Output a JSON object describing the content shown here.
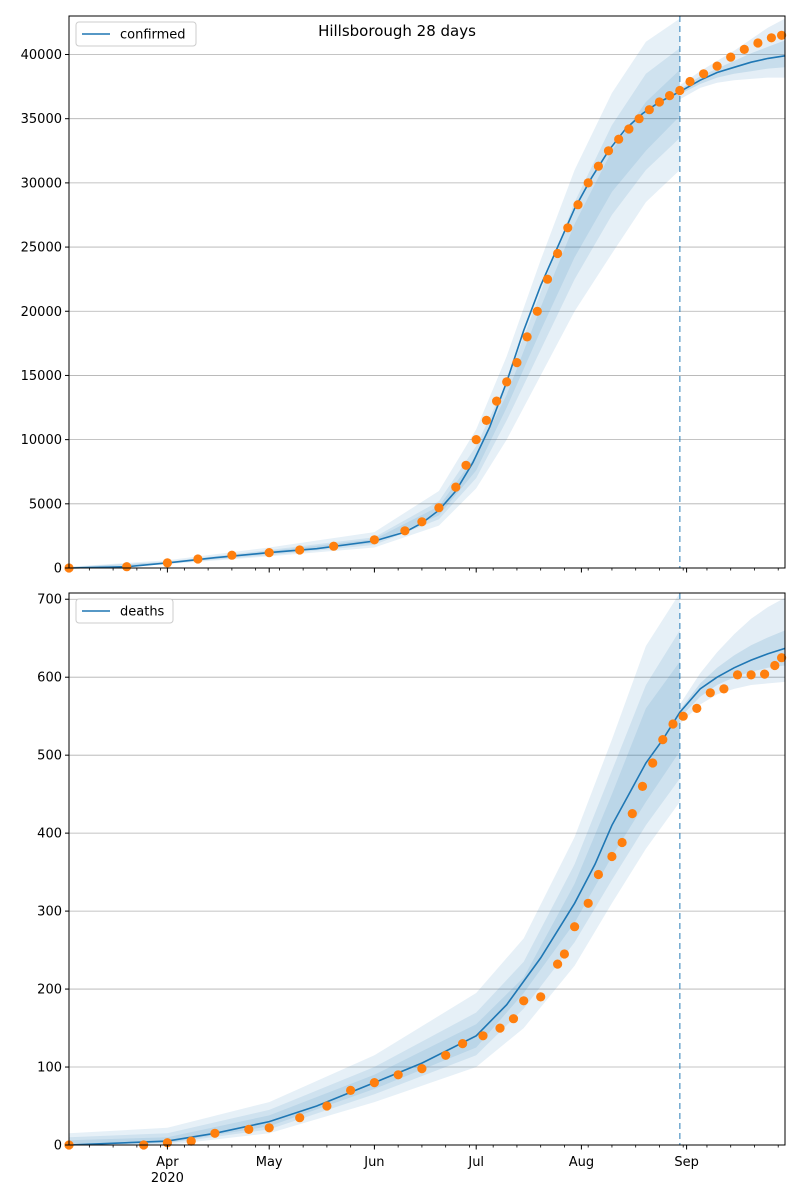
{
  "chart_data": [
    {
      "type": "line",
      "title": "Hillsborough 28 days",
      "legend": {
        "label": "confirmed",
        "placement": "top-left"
      },
      "x_tick_labels": [
        "Apr",
        "May",
        "Jun",
        "Jul",
        "Aug",
        "Sep"
      ],
      "year_label": "2020",
      "x_range": [
        "2020-03-03",
        "2020-09-30"
      ],
      "forecast_start": "2020-08-30",
      "ylim": [
        0,
        43000
      ],
      "yticks": [
        0,
        5000,
        10000,
        15000,
        20000,
        25000,
        30000,
        35000,
        40000
      ],
      "grid": "horizontal",
      "colors": {
        "model": "#1f77b4",
        "observed": "#ff7f0e",
        "band": "#1f77b4"
      },
      "series": [
        {
          "name": "confirmed",
          "kind": "model line",
          "x": [
            "2020-03-03",
            "2020-03-20",
            "2020-04-01",
            "2020-04-15",
            "2020-05-01",
            "2020-05-15",
            "2020-06-01",
            "2020-06-10",
            "2020-06-15",
            "2020-06-20",
            "2020-06-25",
            "2020-06-30",
            "2020-07-05",
            "2020-07-10",
            "2020-07-15",
            "2020-07-20",
            "2020-07-25",
            "2020-07-30",
            "2020-08-04",
            "2020-08-09",
            "2020-08-14",
            "2020-08-19",
            "2020-08-24",
            "2020-08-30",
            "2020-09-05",
            "2020-09-10",
            "2020-09-15",
            "2020-09-20",
            "2020-09-25",
            "2020-09-30"
          ],
          "y": [
            0,
            100,
            400,
            800,
            1200,
            1500,
            2100,
            2800,
            3500,
            4500,
            6000,
            8200,
            11000,
            14500,
            18500,
            22000,
            25000,
            28000,
            30400,
            32500,
            34200,
            35400,
            36300,
            37100,
            38000,
            38600,
            39000,
            39400,
            39700,
            39900
          ]
        },
        {
          "name": "observed",
          "kind": "points",
          "x": [
            "2020-03-03",
            "2020-03-20",
            "2020-04-01",
            "2020-04-10",
            "2020-04-20",
            "2020-05-01",
            "2020-05-10",
            "2020-05-20",
            "2020-06-01",
            "2020-06-10",
            "2020-06-15",
            "2020-06-20",
            "2020-06-25",
            "2020-06-28",
            "2020-07-01",
            "2020-07-04",
            "2020-07-07",
            "2020-07-10",
            "2020-07-13",
            "2020-07-16",
            "2020-07-19",
            "2020-07-22",
            "2020-07-25",
            "2020-07-28",
            "2020-07-31",
            "2020-08-03",
            "2020-08-06",
            "2020-08-09",
            "2020-08-12",
            "2020-08-15",
            "2020-08-18",
            "2020-08-21",
            "2020-08-24",
            "2020-08-27",
            "2020-08-30",
            "2020-09-02",
            "2020-09-06",
            "2020-09-10",
            "2020-09-14",
            "2020-09-18",
            "2020-09-22",
            "2020-09-26",
            "2020-09-29"
          ],
          "y": [
            0,
            100,
            400,
            700,
            1000,
            1200,
            1400,
            1700,
            2200,
            2900,
            3600,
            4700,
            6300,
            8000,
            10000,
            11500,
            13000,
            14500,
            16000,
            18000,
            20000,
            22500,
            24500,
            26500,
            28300,
            30000,
            31300,
            32500,
            33400,
            34200,
            35000,
            35700,
            36300,
            36800,
            37200,
            37900,
            38500,
            39100,
            39800,
            40400,
            40900,
            41300,
            41500
          ]
        }
      ],
      "bands": {
        "x": [
          "2020-03-03",
          "2020-04-01",
          "2020-05-01",
          "2020-06-01",
          "2020-06-20",
          "2020-07-01",
          "2020-07-10",
          "2020-07-20",
          "2020-07-30",
          "2020-08-10",
          "2020-08-20",
          "2020-08-30"
        ],
        "outer_low": [
          0,
          300,
          900,
          1600,
          3300,
          6200,
          10000,
          15000,
          20000,
          24500,
          28500,
          31000
        ],
        "outer_high": [
          100,
          600,
          1600,
          2800,
          6000,
          10800,
          16500,
          24000,
          31000,
          37000,
          41000,
          42800
        ],
        "mid_low": [
          0,
          350,
          1000,
          1800,
          3800,
          7000,
          11500,
          17000,
          22500,
          27500,
          31000,
          33500
        ],
        "mid_high": [
          80,
          500,
          1400,
          2400,
          5200,
          9500,
          14500,
          21500,
          28500,
          34500,
          38500,
          40500
        ],
        "inner_low": [
          0,
          380,
          1100,
          1950,
          4100,
          7600,
          12500,
          18500,
          24200,
          29300,
          32500,
          35200
        ],
        "inner_high": [
          60,
          450,
          1300,
          2250,
          4800,
          8800,
          13500,
          20300,
          26800,
          32500,
          36300,
          38800
        ],
        "fc_x": [
          "2020-08-30",
          "2020-09-05",
          "2020-09-10",
          "2020-09-15",
          "2020-09-20",
          "2020-09-25",
          "2020-09-30"
        ],
        "fc_outer_low": [
          36500,
          37400,
          37800,
          38000,
          38100,
          38200,
          38200
        ],
        "fc_outer_high": [
          37600,
          38700,
          39500,
          40300,
          41200,
          42100,
          42800
        ],
        "fc_inner_low": [
          36900,
          37700,
          38200,
          38500,
          38700,
          38900,
          39000
        ],
        "fc_inner_high": [
          37300,
          38300,
          38900,
          39500,
          40100,
          40600,
          41100
        ]
      }
    },
    {
      "type": "line",
      "legend": {
        "label": "deaths",
        "placement": "top-left"
      },
      "x_tick_labels": [
        "Apr",
        "May",
        "Jun",
        "Jul",
        "Aug",
        "Sep"
      ],
      "year_label": "2020",
      "x_range": [
        "2020-03-03",
        "2020-09-30"
      ],
      "forecast_start": "2020-08-30",
      "ylim": [
        0,
        708
      ],
      "yticks": [
        0,
        100,
        200,
        300,
        400,
        500,
        600,
        700
      ],
      "grid": "horizontal",
      "colors": {
        "model": "#1f77b4",
        "observed": "#ff7f0e",
        "band": "#1f77b4"
      },
      "series": [
        {
          "name": "deaths",
          "kind": "model line",
          "x": [
            "2020-03-03",
            "2020-04-01",
            "2020-04-15",
            "2020-05-01",
            "2020-05-15",
            "2020-06-01",
            "2020-06-15",
            "2020-07-01",
            "2020-07-10",
            "2020-07-20",
            "2020-07-30",
            "2020-08-05",
            "2020-08-10",
            "2020-08-15",
            "2020-08-20",
            "2020-08-25",
            "2020-08-30",
            "2020-09-05",
            "2020-09-10",
            "2020-09-15",
            "2020-09-20",
            "2020-09-25",
            "2020-09-30"
          ],
          "y": [
            0,
            5,
            15,
            30,
            50,
            80,
            105,
            140,
            180,
            240,
            310,
            360,
            410,
            450,
            490,
            520,
            555,
            585,
            600,
            612,
            622,
            630,
            637
          ]
        },
        {
          "name": "observed",
          "kind": "points",
          "x": [
            "2020-03-03",
            "2020-03-25",
            "2020-04-01",
            "2020-04-08",
            "2020-04-15",
            "2020-04-25",
            "2020-05-01",
            "2020-05-10",
            "2020-05-18",
            "2020-05-25",
            "2020-06-01",
            "2020-06-08",
            "2020-06-15",
            "2020-06-22",
            "2020-06-27",
            "2020-07-03",
            "2020-07-08",
            "2020-07-12",
            "2020-07-15",
            "2020-07-20",
            "2020-07-25",
            "2020-07-27",
            "2020-07-30",
            "2020-08-03",
            "2020-08-06",
            "2020-08-10",
            "2020-08-13",
            "2020-08-16",
            "2020-08-19",
            "2020-08-22",
            "2020-08-25",
            "2020-08-28",
            "2020-08-31",
            "2020-09-04",
            "2020-09-08",
            "2020-09-12",
            "2020-09-16",
            "2020-09-20",
            "2020-09-24",
            "2020-09-27",
            "2020-09-29"
          ],
          "y": [
            0,
            0,
            3,
            5,
            15,
            20,
            22,
            35,
            50,
            70,
            80,
            90,
            98,
            115,
            130,
            140,
            150,
            162,
            185,
            190,
            232,
            245,
            280,
            310,
            347,
            370,
            388,
            425,
            460,
            490,
            520,
            540,
            550,
            560,
            580,
            585,
            603,
            603,
            604,
            615,
            625
          ]
        }
      ],
      "bands": {
        "x": [
          "2020-03-03",
          "2020-04-01",
          "2020-05-01",
          "2020-06-01",
          "2020-07-01",
          "2020-07-15",
          "2020-07-30",
          "2020-08-10",
          "2020-08-20",
          "2020-08-30"
        ],
        "outer_low": [
          0,
          0,
          15,
          55,
          100,
          150,
          230,
          310,
          380,
          440
        ],
        "outer_high": [
          15,
          22,
          55,
          115,
          195,
          265,
          395,
          520,
          640,
          708
        ],
        "mid_low": [
          0,
          2,
          20,
          65,
          115,
          175,
          260,
          340,
          410,
          470
        ],
        "mid_high": [
          10,
          15,
          45,
          100,
          170,
          235,
          360,
          480,
          590,
          660
        ],
        "inner_low": [
          0,
          3,
          24,
          72,
          125,
          195,
          285,
          370,
          440,
          505
        ],
        "inner_high": [
          6,
          10,
          38,
          90,
          155,
          215,
          335,
          450,
          560,
          620
        ],
        "fc_x": [
          "2020-08-30",
          "2020-09-05",
          "2020-09-10",
          "2020-09-15",
          "2020-09-20",
          "2020-09-25",
          "2020-09-30"
        ],
        "fc_outer_low": [
          540,
          565,
          578,
          585,
          590,
          592,
          594
        ],
        "fc_outer_high": [
          565,
          605,
          632,
          655,
          675,
          690,
          702
        ],
        "fc_inner_low": [
          548,
          575,
          590,
          600,
          607,
          612,
          615
        ],
        "fc_inner_high": [
          558,
          592,
          612,
          628,
          641,
          651,
          660
        ]
      }
    }
  ]
}
